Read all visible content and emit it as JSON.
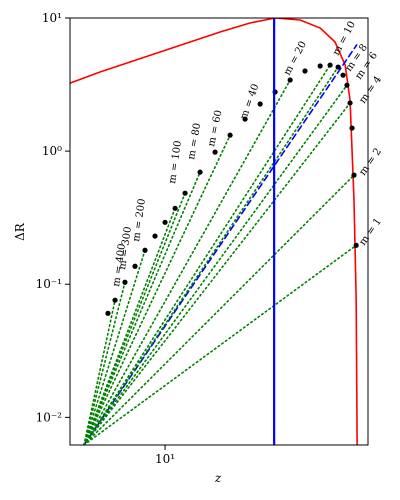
{
  "chart_data": {
    "type": "line",
    "xlabel": "z",
    "ylabel": "ΔR",
    "xscale": "log",
    "yscale": "log",
    "xlim": [
      4.5,
      55
    ],
    "ylim": [
      0.0062,
      10
    ],
    "xticks": [
      {
        "value": 10,
        "label": "10¹"
      }
    ],
    "yticks": [
      {
        "value": 0.01,
        "label": "10⁻²"
      },
      {
        "value": 0.1,
        "label": "10⁻¹"
      },
      {
        "value": 1,
        "label": "10⁰"
      },
      {
        "value": 10,
        "label": "10¹"
      }
    ],
    "vlines": [
      {
        "x": 25,
        "color": "#0000ff"
      }
    ],
    "series": [
      {
        "color": "#ff0000",
        "style": "solid",
        "x": [
          4.5,
          5.79,
          7.45,
          9.59,
          12.34,
          15.88,
          20.4,
          25.2,
          31.1,
          36.8,
          41.7,
          45.4,
          47.3,
          48.9,
          49.8,
          50.2
        ],
        "values": [
          3.24,
          3.93,
          4.67,
          5.55,
          6.6,
          7.85,
          9.17,
          10,
          9.66,
          8.41,
          6.6,
          4.43,
          2.42,
          0.428,
          0.0759,
          0.0062
        ]
      },
      {
        "color": "#0000ff",
        "style": "dashed",
        "x": [
          5.06,
          50
        ],
        "values": [
          0.0062,
          6.27
        ]
      },
      {
        "color": "#008000",
        "style": "dotted",
        "x": [
          5.06,
          6.57
        ],
        "values": [
          0.0062,
          0.0759
        ]
      },
      {
        "color": "#008000",
        "style": "dotted",
        "x": [
          5.06,
          7.14
        ],
        "values": [
          0.0062,
          0.1035
        ]
      },
      {
        "color": "#008000",
        "style": "dotted",
        "x": [
          5.06,
          8.45
        ],
        "values": [
          0.0062,
          0.18
        ]
      },
      {
        "color": "#008000",
        "style": "dotted",
        "x": [
          5.06,
          10.88
        ],
        "values": [
          0.0062,
          0.372
        ]
      },
      {
        "color": "#008000",
        "style": "dotted",
        "x": [
          5.06,
          11.83
        ],
        "values": [
          0.0062,
          0.483
        ]
      },
      {
        "color": "#008000",
        "style": "dotted",
        "x": [
          5.06,
          13.42
        ],
        "values": [
          0.0062,
          0.695
        ]
      },
      {
        "color": "#008000",
        "style": "dotted",
        "x": [
          5.06,
          17.27
        ],
        "values": [
          0.0062,
          1.318
        ]
      },
      {
        "color": "#008000",
        "style": "dotted",
        "x": [
          5.06,
          28.6
        ],
        "values": [
          0.0062,
          3.42
        ]
      },
      {
        "color": "#008000",
        "style": "dotted",
        "x": [
          5.06,
          40.0
        ],
        "values": [
          0.0062,
          4.43
        ]
      },
      {
        "color": "#008000",
        "style": "dotted",
        "x": [
          5.06,
          42.8
        ],
        "values": [
          0.0062,
          4.28
        ]
      },
      {
        "color": "#008000",
        "style": "dotted",
        "x": [
          5.06,
          46.1
        ],
        "values": [
          0.0062,
          3.13
        ]
      },
      {
        "color": "#008000",
        "style": "dotted",
        "x": [
          5.06,
          47.3
        ],
        "values": [
          0.0062,
          2.3
        ]
      },
      {
        "color": "#008000",
        "style": "dotted",
        "x": [
          5.06,
          48.9
        ],
        "values": [
          0.0062,
          0.66
        ]
      },
      {
        "color": "#008000",
        "style": "dotted",
        "x": [
          5.06,
          49.8
        ],
        "values": [
          0.0062,
          0.196
        ]
      },
      {
        "color": "#000000",
        "style": "dots",
        "x": [
          6.19,
          6.57,
          7.14,
          7.77,
          8.45,
          9.19,
          10,
          10.88,
          11.83,
          13.42,
          15.22,
          17.27,
          19.59,
          22.23,
          25.2,
          28.6,
          32.4,
          36.8,
          40.0,
          42.8,
          44.6,
          46.1,
          47.3,
          48.1,
          48.9,
          49.8
        ],
        "values": [
          0.0605,
          0.0759,
          0.1035,
          0.1365,
          0.18,
          0.23,
          0.292,
          0.372,
          0.483,
          0.695,
          0.983,
          1.318,
          1.74,
          2.26,
          2.78,
          3.42,
          4.0,
          4.36,
          4.43,
          4.28,
          3.72,
          3.13,
          2.3,
          1.49,
          0.66,
          0.196
        ]
      }
    ],
    "annotations": [
      "m = 400",
      "m = 300",
      "m = 200",
      "m = 100",
      "m = 80",
      "m = 60",
      "m = 40",
      "m = 20",
      "m = 10",
      "m = 8",
      "m = 6",
      "m = 4",
      "m = 2",
      "m = 1"
    ]
  }
}
